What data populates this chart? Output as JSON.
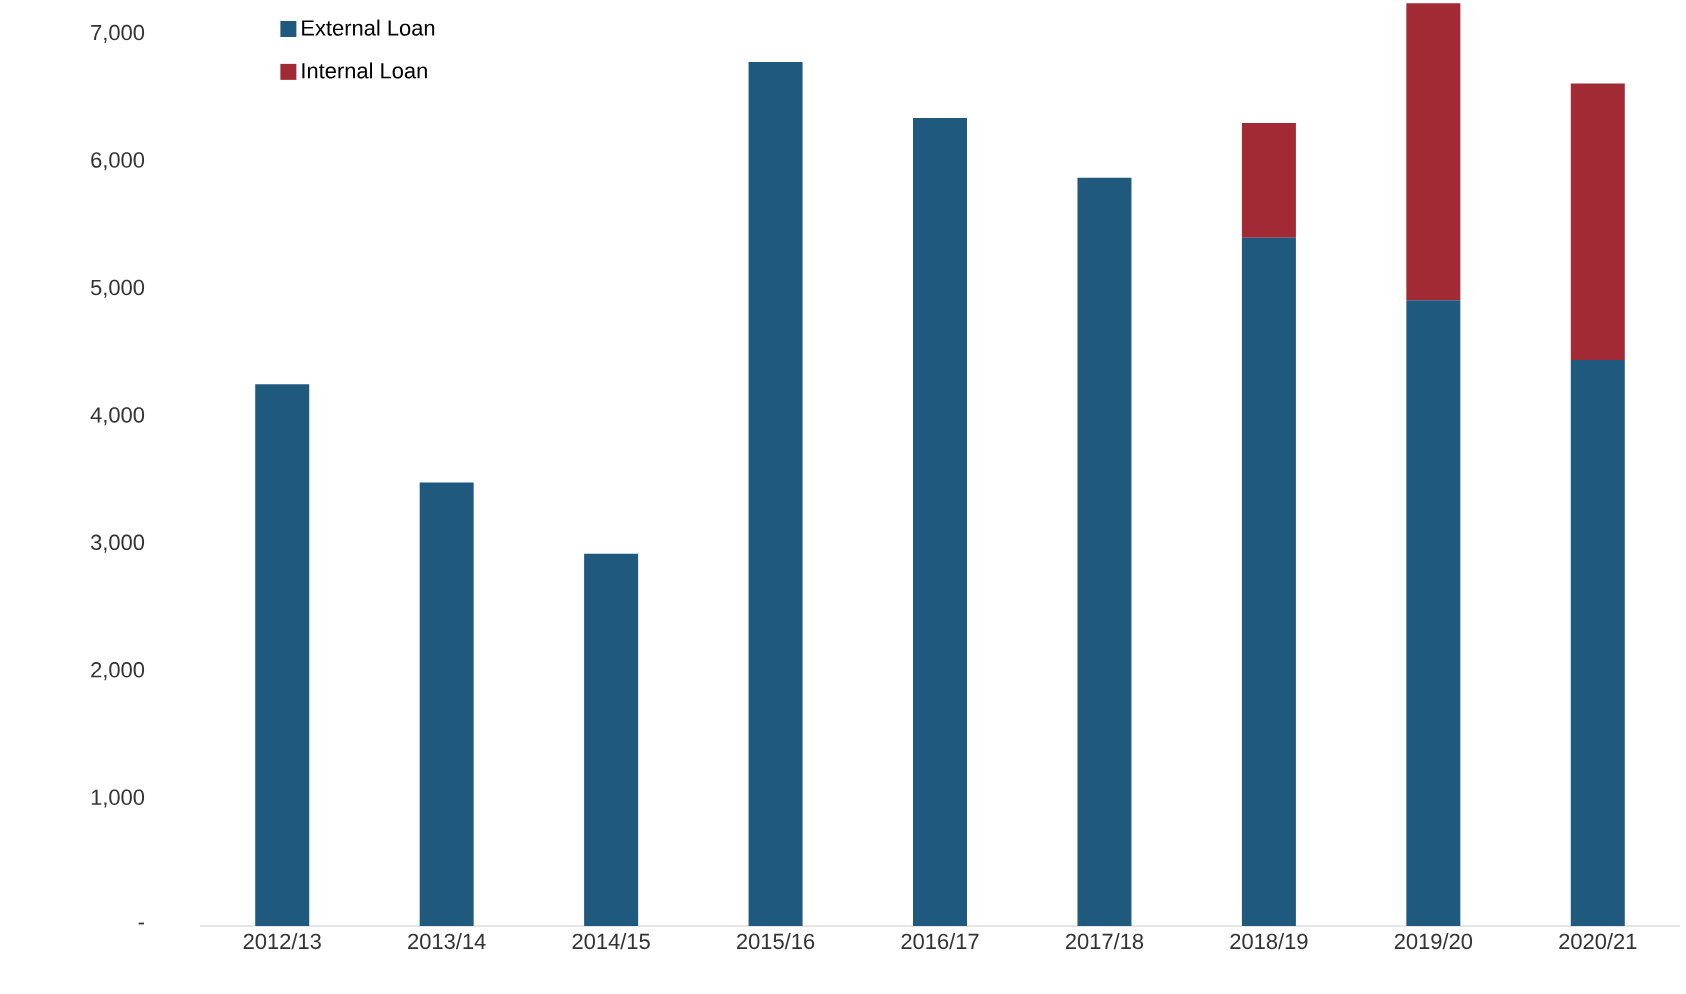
{
  "chart_data": {
    "type": "bar",
    "stacked": true,
    "categories": [
      "2012/13",
      "2013/14",
      "2014/15",
      "2015/16",
      "2016/17",
      "2017/18",
      "2018/19",
      "2019/20",
      "2020/21"
    ],
    "series": [
      {
        "name": "External Loan",
        "color": "#1f5a7e",
        "values": [
          4250,
          3480,
          2920,
          6780,
          6340,
          5870,
          5400,
          4910,
          4440
        ]
      },
      {
        "name": "Internal Loan",
        "color": "#a12a35",
        "values": [
          null,
          null,
          null,
          null,
          null,
          null,
          900,
          2330,
          2170
        ]
      }
    ],
    "ylim": [
      0,
      7250
    ],
    "yticks": [
      {
        "value": 0,
        "label": "-"
      },
      {
        "value": 1000,
        "label": "1,000"
      },
      {
        "value": 2000,
        "label": "2,000"
      },
      {
        "value": 3000,
        "label": "3,000"
      },
      {
        "value": 4000,
        "label": "4,000"
      },
      {
        "value": 5000,
        "label": "5,000"
      },
      {
        "value": 6000,
        "label": "6,000"
      },
      {
        "value": 7000,
        "label": "7,000"
      }
    ],
    "grid": false,
    "legend": "top left"
  }
}
